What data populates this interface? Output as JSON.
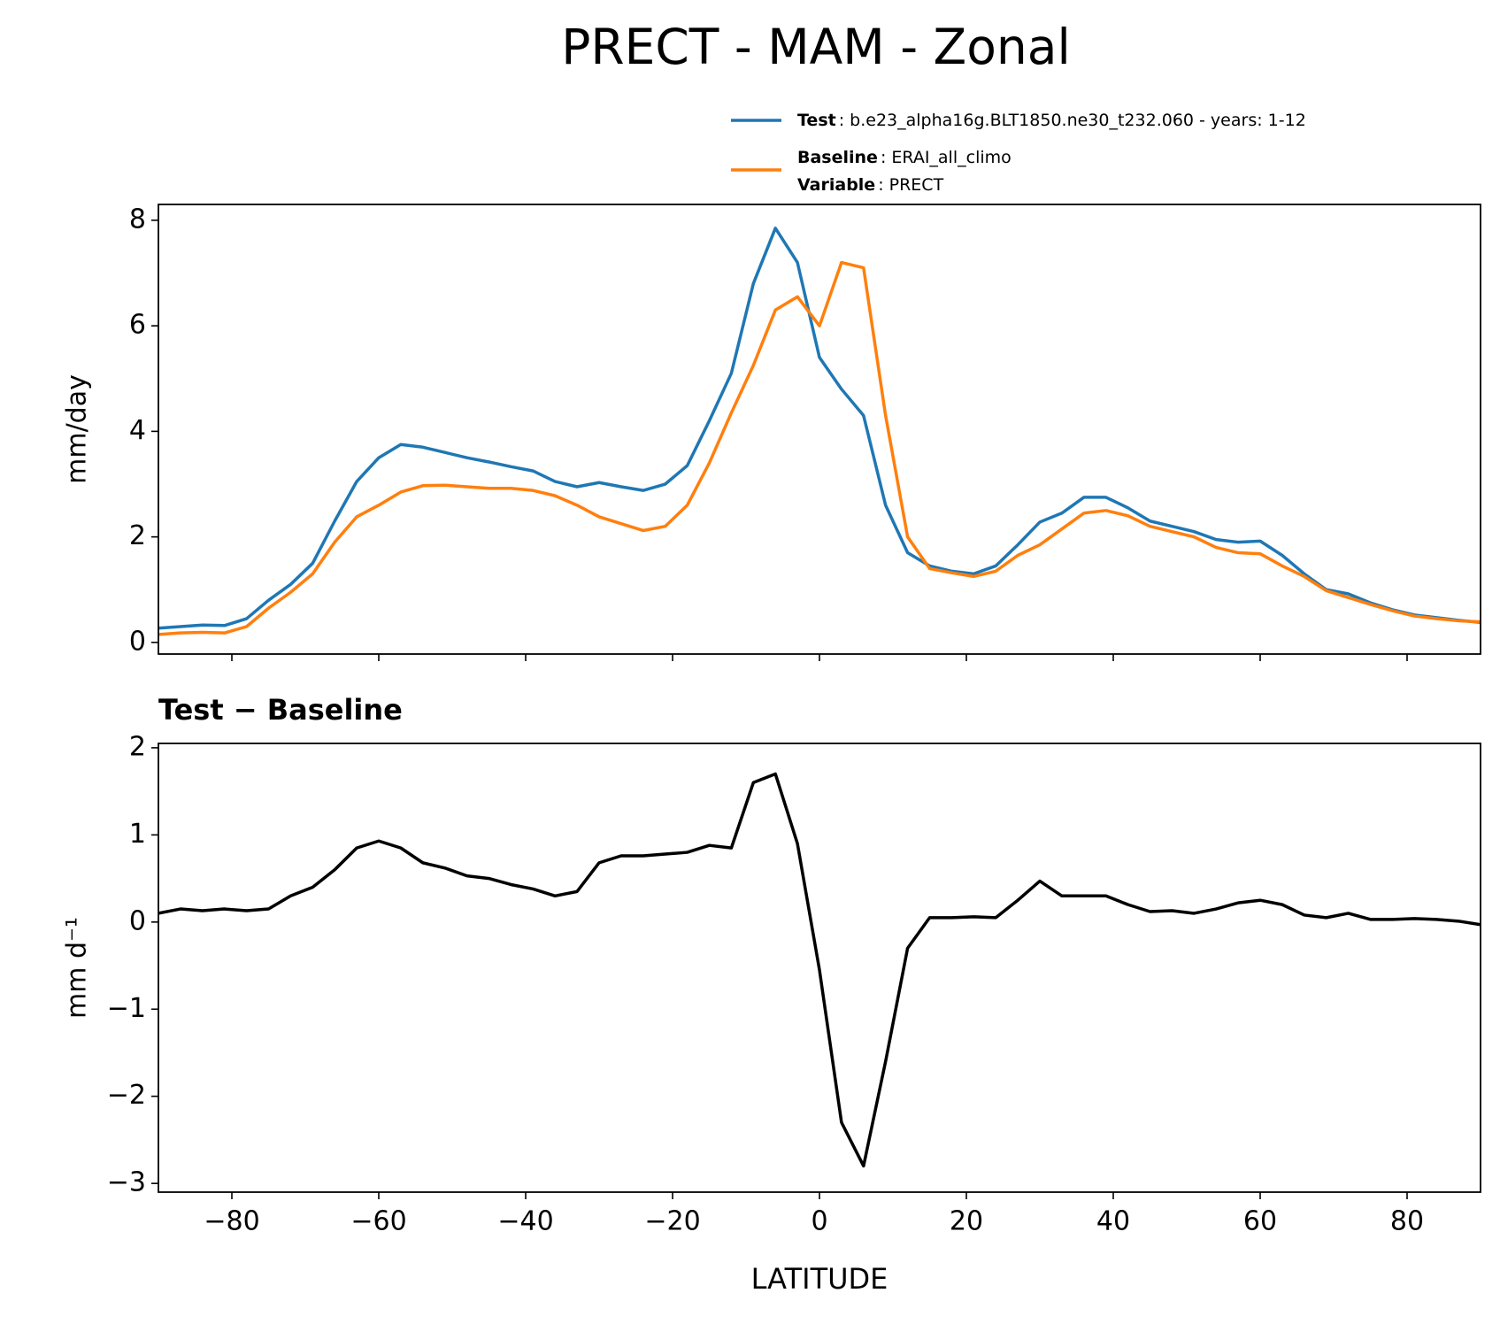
{
  "title": "PRECT - MAM - Zonal",
  "chart_data": [
    {
      "type": "line",
      "ylabel": "mm/day",
      "xlim": [
        -90,
        90
      ],
      "ylim": [
        -0.22,
        8.3
      ],
      "yticks": [
        0,
        2,
        4,
        6,
        8
      ],
      "x": [
        -90,
        -87,
        -84,
        -81,
        -78,
        -75,
        -72,
        -69,
        -66,
        -63,
        -60,
        -57,
        -54,
        -51,
        -48,
        -45,
        -42,
        -39,
        -36,
        -33,
        -30,
        -27,
        -24,
        -21,
        -18,
        -15,
        -12,
        -9,
        -6,
        -3,
        0,
        3,
        6,
        9,
        12,
        15,
        18,
        21,
        24,
        27,
        30,
        33,
        36,
        39,
        42,
        45,
        48,
        51,
        54,
        57,
        60,
        63,
        66,
        69,
        72,
        75,
        78,
        81,
        84,
        87,
        90
      ],
      "series": [
        {
          "name": "Test",
          "description": ": b.e23_alpha16g.BLT1850.ne30_t232.060 - years: 1-12",
          "color": "#1f77b4",
          "values": [
            0.27,
            0.3,
            0.33,
            0.32,
            0.45,
            0.8,
            1.1,
            1.5,
            2.3,
            3.05,
            3.5,
            3.75,
            3.7,
            3.6,
            3.5,
            3.42,
            3.33,
            3.25,
            3.05,
            2.95,
            3.03,
            2.95,
            2.88,
            3.0,
            3.35,
            4.2,
            5.1,
            6.8,
            7.85,
            7.2,
            5.4,
            4.8,
            4.3,
            2.6,
            1.7,
            1.45,
            1.35,
            1.3,
            1.45,
            1.85,
            2.28,
            2.45,
            2.75,
            2.75,
            2.55,
            2.3,
            2.2,
            2.1,
            1.95,
            1.9,
            1.92,
            1.65,
            1.3,
            1.0,
            0.92,
            0.75,
            0.62,
            0.52,
            0.47,
            0.42,
            0.38
          ]
        },
        {
          "name": "Baseline",
          "description": ": ERAI_all_climo",
          "color": "#ff7f0e",
          "values": [
            0.15,
            0.18,
            0.19,
            0.18,
            0.3,
            0.65,
            0.95,
            1.3,
            1.9,
            2.38,
            2.6,
            2.85,
            2.97,
            2.98,
            2.95,
            2.92,
            2.92,
            2.88,
            2.78,
            2.6,
            2.38,
            2.25,
            2.12,
            2.2,
            2.6,
            3.4,
            4.35,
            5.25,
            6.3,
            6.55,
            6.0,
            7.2,
            7.1,
            4.3,
            2.0,
            1.4,
            1.32,
            1.25,
            1.35,
            1.65,
            1.85,
            2.15,
            2.45,
            2.5,
            2.4,
            2.2,
            2.1,
            2.0,
            1.8,
            1.7,
            1.68,
            1.45,
            1.25,
            0.98,
            0.85,
            0.72,
            0.6,
            0.5,
            0.45,
            0.41,
            0.39
          ]
        }
      ],
      "legend_note": {
        "label": "Variable",
        "text": ": PRECT"
      }
    },
    {
      "type": "line",
      "title": "Test − Baseline",
      "xlabel": "LATITUDE",
      "ylabel": "mm d⁻¹",
      "xlim": [
        -90,
        90
      ],
      "xticks": [
        {
          "value": -80,
          "label": "−80"
        },
        {
          "value": -60,
          "label": "−60"
        },
        {
          "value": -40,
          "label": "−40"
        },
        {
          "value": -20,
          "label": "−20"
        },
        0,
        20,
        40,
        60,
        80
      ],
      "ylim": [
        -3.1,
        2.05
      ],
      "yticks": [
        {
          "value": -3,
          "label": "−3"
        },
        {
          "value": -2,
          "label": "−2"
        },
        {
          "value": -1,
          "label": "−1"
        },
        0,
        1,
        2
      ],
      "x": [
        -90,
        -87,
        -84,
        -81,
        -78,
        -75,
        -72,
        -69,
        -66,
        -63,
        -60,
        -57,
        -54,
        -51,
        -48,
        -45,
        -42,
        -39,
        -36,
        -33,
        -30,
        -27,
        -24,
        -21,
        -18,
        -15,
        -12,
        -9,
        -6,
        -3,
        0,
        3,
        6,
        9,
        12,
        15,
        18,
        21,
        24,
        27,
        30,
        33,
        36,
        39,
        42,
        45,
        48,
        51,
        54,
        57,
        60,
        63,
        66,
        69,
        72,
        75,
        78,
        81,
        84,
        87,
        90
      ],
      "series": [
        {
          "color": "#000000",
          "values": [
            0.1,
            0.15,
            0.13,
            0.15,
            0.13,
            0.15,
            0.3,
            0.4,
            0.6,
            0.85,
            0.93,
            0.85,
            0.68,
            0.62,
            0.53,
            0.5,
            0.43,
            0.38,
            0.3,
            0.35,
            0.68,
            0.76,
            0.76,
            0.78,
            0.8,
            0.88,
            0.85,
            1.6,
            1.7,
            0.9,
            -0.55,
            -2.3,
            -2.8,
            -1.6,
            -0.3,
            0.05,
            0.05,
            0.06,
            0.05,
            0.25,
            0.47,
            0.3,
            0.3,
            0.3,
            0.2,
            0.12,
            0.13,
            0.1,
            0.15,
            0.22,
            0.25,
            0.2,
            0.08,
            0.05,
            0.1,
            0.03,
            0.03,
            0.04,
            0.03,
            0.01,
            -0.03
          ]
        }
      ]
    }
  ]
}
